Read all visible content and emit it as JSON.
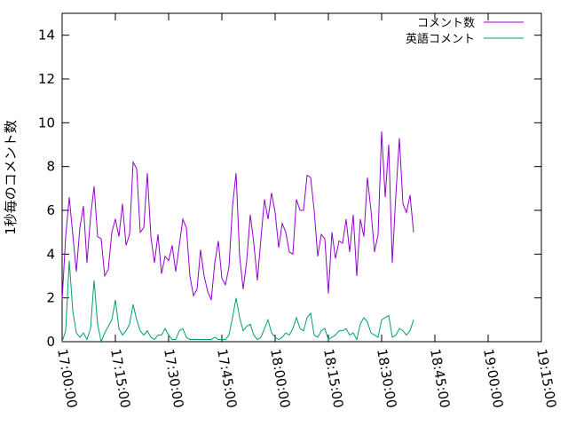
{
  "chart_data": {
    "type": "line",
    "title": "",
    "xlabel": "",
    "ylabel": "1秒毎のコメント数",
    "xlim": [
      "17:00:00",
      "19:15:00"
    ],
    "ylim": [
      0,
      15
    ],
    "x_tick_labels": [
      "17:00:00",
      "17:15:00",
      "17:30:00",
      "17:45:00",
      "18:00:00",
      "18:15:00",
      "18:30:00",
      "18:45:00",
      "19:00:00",
      "19:15:00"
    ],
    "y_tick_labels": [
      "0",
      "2",
      "4",
      "6",
      "8",
      "10",
      "12",
      "14"
    ],
    "y_ticks": [
      0,
      2,
      4,
      6,
      8,
      10,
      12,
      14
    ],
    "grid": false,
    "legend_position": "top-right",
    "x_start": "17:00:00",
    "x_step_seconds": 60,
    "series": [
      {
        "name": "コメント数",
        "color": "#9400d3",
        "values": [
          1.9,
          4.8,
          6.6,
          4.9,
          3.2,
          5.2,
          6.2,
          3.6,
          5.7,
          7.1,
          4.8,
          4.7,
          3.0,
          3.3,
          5.0,
          5.6,
          4.8,
          6.3,
          4.4,
          4.9,
          8.2,
          7.9,
          5.0,
          5.2,
          7.7,
          4.8,
          3.6,
          4.9,
          3.1,
          3.9,
          3.7,
          4.4,
          3.2,
          4.4,
          5.6,
          5.2,
          3.0,
          2.1,
          2.4,
          4.2,
          3.0,
          2.3,
          1.9,
          3.6,
          4.6,
          2.9,
          2.6,
          3.4,
          6.2,
          7.7,
          3.9,
          2.4,
          3.7,
          5.8,
          4.5,
          2.8,
          4.7,
          6.5,
          5.6,
          6.8,
          5.9,
          4.3,
          5.4,
          5.0,
          4.1,
          4.0,
          6.5,
          6.0,
          6.0,
          7.6,
          7.5,
          6.0,
          3.9,
          4.9,
          4.7,
          2.2,
          5.0,
          3.8,
          4.6,
          4.5,
          5.6,
          4.1,
          5.8,
          3.0,
          5.6,
          4.8,
          7.5,
          6.0,
          4.1,
          4.9,
          9.6,
          6.6,
          9.0,
          3.6,
          6.7,
          9.3,
          6.3,
          5.9,
          6.7,
          5.0
        ]
      },
      {
        "name": "英語コメント",
        "color": "#009e73",
        "values": [
          0.0,
          0.5,
          3.7,
          1.4,
          0.4,
          0.2,
          0.4,
          0.1,
          0.6,
          2.8,
          0.8,
          0.0,
          0.4,
          0.7,
          1.0,
          1.9,
          0.6,
          0.3,
          0.5,
          0.8,
          1.7,
          1.0,
          0.5,
          0.3,
          0.5,
          0.2,
          0.1,
          0.3,
          0.3,
          0.6,
          0.3,
          0.1,
          0.1,
          0.5,
          0.6,
          0.2,
          0.1,
          0.1,
          0.1,
          0.1,
          0.1,
          0.1,
          0.1,
          0.2,
          0.1,
          0.1,
          0.1,
          0.3,
          1.1,
          2.0,
          1.1,
          0.5,
          0.7,
          0.8,
          0.3,
          0.1,
          0.2,
          0.6,
          1.0,
          0.4,
          0.2,
          0.1,
          0.2,
          0.4,
          0.3,
          0.6,
          1.1,
          0.6,
          0.5,
          1.1,
          1.3,
          0.3,
          0.2,
          0.5,
          0.6,
          0.1,
          0.2,
          0.3,
          0.5,
          0.5,
          0.6,
          0.3,
          0.4,
          0.1,
          0.8,
          1.1,
          0.9,
          0.4,
          0.3,
          0.2,
          1.0,
          1.1,
          1.2,
          0.2,
          0.3,
          0.6,
          0.5,
          0.3,
          0.5,
          1.0
        ]
      }
    ]
  }
}
